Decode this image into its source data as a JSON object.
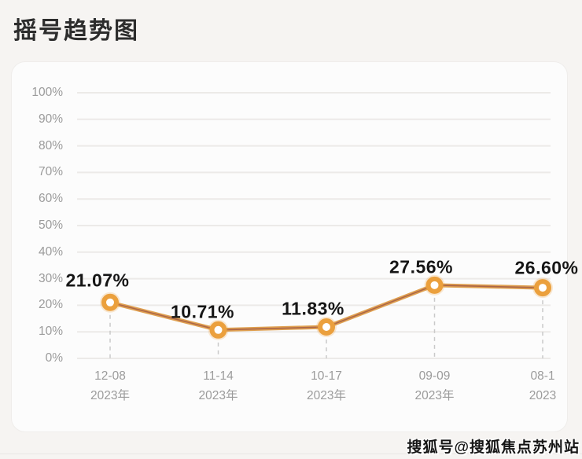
{
  "page": {
    "title": "摇号趋势图",
    "watermark": "搜狐号@搜狐焦点苏州站"
  },
  "chart_data": {
    "type": "line",
    "title": "摇号趋势图",
    "values": [
      21.07,
      10.71,
      11.83,
      27.56,
      26.6
    ],
    "value_labels": [
      "21.07%",
      "10.71%",
      "11.83%",
      "27.56%",
      "26.60%"
    ],
    "x_labels": [
      {
        "date": "12-08",
        "year": "2023年"
      },
      {
        "date": "11-14",
        "year": "2023年"
      },
      {
        "date": "10-17",
        "year": "2023年"
      },
      {
        "date": "09-09",
        "year": "2023年"
      },
      {
        "date": "08-1",
        "year": "2023"
      }
    ],
    "y_ticks": [
      "100%",
      "90%",
      "80%",
      "70%",
      "60%",
      "50%",
      "40%",
      "30%",
      "20%",
      "10%",
      "0%"
    ],
    "ylim": [
      0,
      100
    ],
    "grid": true,
    "legend": false,
    "colors": {
      "line": "#dfa050",
      "line_core": "#a35c47",
      "marker": "#eba03d",
      "gridline": "#eceae8",
      "axis_text": "#9b9b9b",
      "value_text": "#161616"
    }
  }
}
